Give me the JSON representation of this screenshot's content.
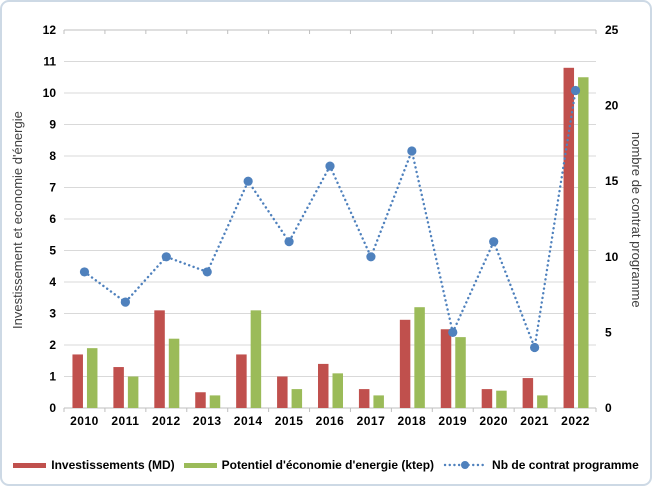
{
  "chart_data": {
    "type": "combo-bar-line",
    "categories": [
      "2010",
      "2011",
      "2012",
      "2013",
      "2014",
      "2015",
      "2016",
      "2017",
      "2018",
      "2019",
      "2020",
      "2021",
      "2022"
    ],
    "series": [
      {
        "name": "Investissements (MD)",
        "type": "bar",
        "axis": "left",
        "color": "#C0504D",
        "values": [
          1.7,
          1.3,
          3.1,
          0.5,
          1.7,
          1.0,
          1.4,
          0.6,
          2.8,
          2.5,
          0.6,
          0.95,
          10.8
        ]
      },
      {
        "name": "Potentiel d'économie d'energie (ktep)",
        "type": "bar",
        "axis": "left",
        "color": "#9BBB59",
        "values": [
          1.9,
          1.0,
          2.2,
          0.4,
          3.1,
          0.6,
          1.1,
          0.4,
          3.2,
          2.25,
          0.55,
          0.4,
          10.5
        ]
      },
      {
        "name": "Nb de contrat programme",
        "type": "line",
        "style": "dotted",
        "axis": "right",
        "color": "#4F81BD",
        "values": [
          9,
          7,
          10,
          9,
          15,
          11,
          16,
          10,
          17,
          5,
          11,
          4,
          21
        ]
      }
    ],
    "left_axis": {
      "label": "Investissement et economie d'énergie",
      "min": 0,
      "max": 12,
      "step": 1
    },
    "right_axis": {
      "label": "nombre de contrat programme",
      "min": 0,
      "max": 25,
      "step": 5
    },
    "grid": true,
    "legend_position": "bottom",
    "colors": {
      "gridline": "#D9D9D9",
      "axis_line": "#BFBFBF",
      "tick_text": "#000000",
      "axis_title_text": "#3F3F3F",
      "background": "#FFFFFF",
      "frame_border": "#CDD9E5"
    }
  }
}
